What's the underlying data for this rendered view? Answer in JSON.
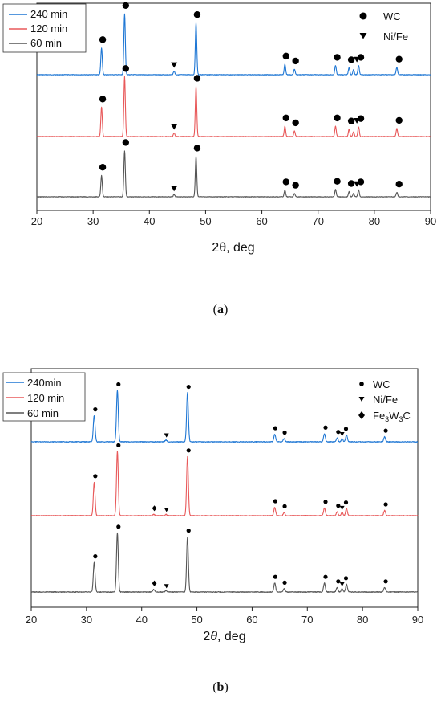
{
  "chart_data": [
    {
      "panel": "a",
      "type": "line",
      "caption_paren_open": "(",
      "caption_letter": "a",
      "caption_paren_close": ")",
      "xlabel_pre": "2",
      "xlabel_theta": "θ",
      "xlabel_post": ", deg",
      "xlim": [
        20,
        90
      ],
      "xticks": [
        20,
        30,
        40,
        50,
        60,
        70,
        80,
        90
      ],
      "legend": {
        "placement": "top-left",
        "entries": [
          {
            "label": "240 min",
            "color": "#1f77d4"
          },
          {
            "label": "120 min",
            "color": "#e8595a"
          },
          {
            "label": "60 min",
            "color": "#555555"
          }
        ]
      },
      "marker_legend": {
        "placement": "top-right",
        "entries": [
          {
            "symbol": "circle",
            "label": "WC"
          },
          {
            "symbol": "triangle-down",
            "label": "Ni/Fe"
          }
        ]
      },
      "series": [
        {
          "name": "240 min",
          "color": "#1f77d4",
          "peaks": [
            {
              "x": 31.5,
              "h": 0.44
            },
            {
              "x": 35.6,
              "h": 1.0
            },
            {
              "x": 44.4,
              "h": 0.06
            },
            {
              "x": 48.3,
              "h": 0.85
            },
            {
              "x": 64.1,
              "h": 0.17
            },
            {
              "x": 65.8,
              "h": 0.09
            },
            {
              "x": 73.1,
              "h": 0.15
            },
            {
              "x": 75.5,
              "h": 0.11
            },
            {
              "x": 76.3,
              "h": 0.08
            },
            {
              "x": 77.2,
              "h": 0.15
            },
            {
              "x": 84.0,
              "h": 0.12
            }
          ],
          "markers": [
            {
              "x": 31.7,
              "symbol": "circle"
            },
            {
              "x": 35.8,
              "symbol": "circle"
            },
            {
              "x": 44.4,
              "symbol": "triangle-down"
            },
            {
              "x": 48.5,
              "symbol": "circle"
            },
            {
              "x": 64.3,
              "symbol": "circle"
            },
            {
              "x": 66.0,
              "symbol": "circle"
            },
            {
              "x": 73.4,
              "symbol": "circle"
            },
            {
              "x": 75.9,
              "symbol": "circle"
            },
            {
              "x": 76.9,
              "symbol": "triangle-down"
            },
            {
              "x": 77.6,
              "symbol": "circle"
            },
            {
              "x": 84.4,
              "symbol": "circle"
            }
          ]
        },
        {
          "name": "120 min",
          "color": "#e8595a",
          "peaks": [
            {
              "x": 31.5,
              "h": 0.48
            },
            {
              "x": 35.6,
              "h": 0.98
            },
            {
              "x": 44.4,
              "h": 0.06
            },
            {
              "x": 48.3,
              "h": 0.82
            },
            {
              "x": 64.1,
              "h": 0.17
            },
            {
              "x": 65.8,
              "h": 0.09
            },
            {
              "x": 73.1,
              "h": 0.17
            },
            {
              "x": 75.5,
              "h": 0.12
            },
            {
              "x": 76.3,
              "h": 0.08
            },
            {
              "x": 77.2,
              "h": 0.16
            },
            {
              "x": 84.0,
              "h": 0.13
            }
          ],
          "markers": [
            {
              "x": 31.7,
              "symbol": "circle"
            },
            {
              "x": 35.8,
              "symbol": "circle"
            },
            {
              "x": 44.4,
              "symbol": "triangle-down"
            },
            {
              "x": 48.5,
              "symbol": "circle"
            },
            {
              "x": 64.3,
              "symbol": "circle"
            },
            {
              "x": 66.0,
              "symbol": "circle"
            },
            {
              "x": 73.4,
              "symbol": "circle"
            },
            {
              "x": 75.9,
              "symbol": "circle"
            },
            {
              "x": 76.9,
              "symbol": "triangle-down"
            },
            {
              "x": 77.6,
              "symbol": "circle"
            },
            {
              "x": 84.4,
              "symbol": "circle"
            }
          ]
        },
        {
          "name": "60 min",
          "color": "#555555",
          "peaks": [
            {
              "x": 31.5,
              "h": 0.38
            },
            {
              "x": 35.6,
              "h": 0.82
            },
            {
              "x": 44.4,
              "h": 0.04
            },
            {
              "x": 48.3,
              "h": 0.72
            },
            {
              "x": 64.1,
              "h": 0.12
            },
            {
              "x": 65.8,
              "h": 0.06
            },
            {
              "x": 73.1,
              "h": 0.13
            },
            {
              "x": 75.5,
              "h": 0.09
            },
            {
              "x": 76.3,
              "h": 0.06
            },
            {
              "x": 77.2,
              "h": 0.12
            },
            {
              "x": 84.0,
              "h": 0.08
            }
          ],
          "markers": [
            {
              "x": 31.7,
              "symbol": "circle"
            },
            {
              "x": 35.8,
              "symbol": "circle"
            },
            {
              "x": 44.4,
              "symbol": "triangle-down"
            },
            {
              "x": 48.5,
              "symbol": "circle"
            },
            {
              "x": 64.3,
              "symbol": "circle"
            },
            {
              "x": 66.0,
              "symbol": "circle"
            },
            {
              "x": 73.4,
              "symbol": "circle"
            },
            {
              "x": 75.9,
              "symbol": "circle"
            },
            {
              "x": 76.9,
              "symbol": "triangle-down"
            },
            {
              "x": 77.6,
              "symbol": "circle"
            },
            {
              "x": 84.4,
              "symbol": "circle"
            }
          ]
        }
      ]
    },
    {
      "panel": "b",
      "type": "line",
      "caption_paren_open": "(",
      "caption_letter": "b",
      "caption_paren_close": ")",
      "xlabel_pre": "2",
      "xlabel_theta": "θ",
      "xlabel_post": ", deg",
      "xlim": [
        20,
        90
      ],
      "xticks": [
        20,
        30,
        40,
        50,
        60,
        70,
        80,
        90
      ],
      "legend": {
        "placement": "top-left",
        "entries": [
          {
            "label": "240min",
            "color": "#1f77d4"
          },
          {
            "label": "120 min",
            "color": "#e8595a"
          },
          {
            "label": "60 min",
            "color": "#555555"
          }
        ]
      },
      "marker_legend": {
        "placement": "top-right",
        "entries": [
          {
            "symbol": "circle",
            "label": "WC"
          },
          {
            "symbol": "triangle-down",
            "label": "Ni/Fe"
          },
          {
            "symbol": "diamond",
            "label": "Fe3W3C",
            "label_main": "Fe",
            "sub1": "3",
            "mid": "W",
            "sub2": "3",
            "tail": "C"
          }
        ]
      },
      "series": [
        {
          "name": "240min",
          "color": "#1f77d4",
          "peaks": [
            {
              "x": 31.4,
              "h": 0.42
            },
            {
              "x": 35.6,
              "h": 0.82
            },
            {
              "x": 44.4,
              "h": 0.03
            },
            {
              "x": 48.3,
              "h": 0.78
            },
            {
              "x": 64.1,
              "h": 0.12
            },
            {
              "x": 65.8,
              "h": 0.05
            },
            {
              "x": 73.1,
              "h": 0.13
            },
            {
              "x": 75.4,
              "h": 0.06
            },
            {
              "x": 76.3,
              "h": 0.05
            },
            {
              "x": 77.1,
              "h": 0.11
            },
            {
              "x": 84.0,
              "h": 0.08
            }
          ],
          "markers": [
            {
              "x": 31.6,
              "symbol": "circle"
            },
            {
              "x": 35.8,
              "symbol": "circle"
            },
            {
              "x": 44.5,
              "symbol": "triangle-down"
            },
            {
              "x": 48.5,
              "symbol": "circle"
            },
            {
              "x": 64.2,
              "symbol": "circle"
            },
            {
              "x": 65.9,
              "symbol": "circle"
            },
            {
              "x": 73.3,
              "symbol": "circle"
            },
            {
              "x": 75.6,
              "symbol": "circle"
            },
            {
              "x": 76.3,
              "symbol": "triangle-down"
            },
            {
              "x": 77.0,
              "symbol": "circle"
            },
            {
              "x": 84.2,
              "symbol": "circle"
            }
          ]
        },
        {
          "name": "120 min",
          "color": "#e8595a",
          "peaks": [
            {
              "x": 31.4,
              "h": 0.52
            },
            {
              "x": 35.6,
              "h": 1.0
            },
            {
              "x": 42.2,
              "h": 0.02
            },
            {
              "x": 44.4,
              "h": 0.02
            },
            {
              "x": 48.3,
              "h": 0.92
            },
            {
              "x": 64.1,
              "h": 0.13
            },
            {
              "x": 65.8,
              "h": 0.05
            },
            {
              "x": 73.1,
              "h": 0.12
            },
            {
              "x": 75.4,
              "h": 0.06
            },
            {
              "x": 76.3,
              "h": 0.05
            },
            {
              "x": 77.1,
              "h": 0.11
            },
            {
              "x": 84.0,
              "h": 0.08
            }
          ],
          "markers": [
            {
              "x": 31.6,
              "symbol": "circle"
            },
            {
              "x": 35.8,
              "symbol": "circle"
            },
            {
              "x": 42.3,
              "symbol": "diamond"
            },
            {
              "x": 44.5,
              "symbol": "triangle-down"
            },
            {
              "x": 48.5,
              "symbol": "circle"
            },
            {
              "x": 64.2,
              "symbol": "circle"
            },
            {
              "x": 65.9,
              "symbol": "circle"
            },
            {
              "x": 73.3,
              "symbol": "circle"
            },
            {
              "x": 75.6,
              "symbol": "circle"
            },
            {
              "x": 76.3,
              "symbol": "triangle-down"
            },
            {
              "x": 77.0,
              "symbol": "circle"
            },
            {
              "x": 84.2,
              "symbol": "circle"
            }
          ]
        },
        {
          "name": "60 min",
          "color": "#555555",
          "peaks": [
            {
              "x": 31.4,
              "h": 0.46
            },
            {
              "x": 35.6,
              "h": 0.92
            },
            {
              "x": 42.2,
              "h": 0.04
            },
            {
              "x": 44.4,
              "h": 0.02
            },
            {
              "x": 48.3,
              "h": 0.86
            },
            {
              "x": 64.1,
              "h": 0.14
            },
            {
              "x": 65.8,
              "h": 0.05
            },
            {
              "x": 73.1,
              "h": 0.14
            },
            {
              "x": 75.4,
              "h": 0.07
            },
            {
              "x": 76.3,
              "h": 0.05
            },
            {
              "x": 77.1,
              "h": 0.12
            },
            {
              "x": 84.0,
              "h": 0.07
            }
          ],
          "markers": [
            {
              "x": 31.6,
              "symbol": "circle"
            },
            {
              "x": 35.8,
              "symbol": "circle"
            },
            {
              "x": 42.3,
              "symbol": "diamond"
            },
            {
              "x": 44.5,
              "symbol": "triangle-down"
            },
            {
              "x": 48.5,
              "symbol": "circle"
            },
            {
              "x": 64.2,
              "symbol": "circle"
            },
            {
              "x": 65.9,
              "symbol": "circle"
            },
            {
              "x": 73.3,
              "symbol": "circle"
            },
            {
              "x": 75.6,
              "symbol": "circle"
            },
            {
              "x": 76.3,
              "symbol": "triangle-down"
            },
            {
              "x": 77.0,
              "symbol": "circle"
            },
            {
              "x": 84.2,
              "symbol": "circle"
            }
          ]
        }
      ]
    }
  ]
}
